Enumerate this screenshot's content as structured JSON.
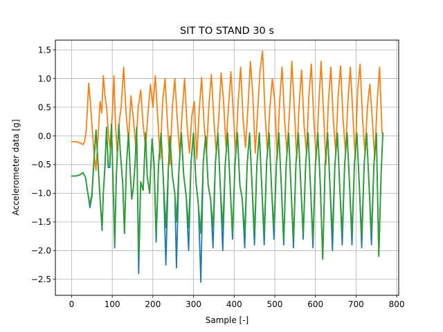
{
  "chart_data": {
    "type": "line",
    "title": "SIT TO STAND 30 s",
    "xlabel": "Sample [-]",
    "ylabel": "Accelerometer data [g]",
    "xlim": [
      -40,
      805
    ],
    "ylim": [
      -2.78,
      1.67
    ],
    "xticks": [
      0,
      100,
      200,
      300,
      400,
      500,
      600,
      700,
      800
    ],
    "yticks": [
      -2.5,
      -2.0,
      -1.5,
      -1.0,
      -0.5,
      0.0,
      0.5,
      1.0,
      1.5
    ],
    "xtick_labels": [
      "0",
      "100",
      "200",
      "300",
      "400",
      "500",
      "600",
      "700",
      "800"
    ],
    "ytick_labels": [
      "−2.5",
      "−2.0",
      "−1.5",
      "−1.0",
      "−0.5",
      "0.0",
      "0.5",
      "1.0",
      "1.5"
    ],
    "grid": true,
    "series": [
      {
        "color": "#1f77b4",
        "x": [
          0,
          10,
          20,
          28,
          34,
          40,
          45,
          50,
          55,
          60,
          66,
          70,
          75,
          78,
          82,
          86,
          90,
          94,
          98,
          102,
          106,
          110,
          116,
          120,
          126,
          130,
          135,
          140,
          144,
          148,
          152,
          156,
          160,
          165,
          170,
          176,
          182,
          186,
          192,
          198,
          203,
          208,
          214,
          220,
          226,
          232,
          238,
          242,
          248,
          254,
          258,
          264,
          270,
          276,
          282,
          288,
          294,
          300,
          306,
          312,
          318,
          324,
          330,
          336,
          342,
          348,
          354,
          360,
          366,
          372,
          378,
          384,
          390,
          396,
          402,
          408,
          414,
          420,
          426,
          432,
          438,
          444,
          450,
          456,
          462,
          468,
          474,
          480,
          486,
          492,
          498,
          504,
          510,
          516,
          522,
          528,
          534,
          540,
          546,
          552,
          558,
          564,
          570,
          576,
          582,
          588,
          594,
          600,
          606,
          612,
          618,
          624,
          630,
          636,
          642,
          648,
          654,
          660,
          666,
          672,
          678,
          684,
          690,
          696,
          702,
          708,
          714,
          720,
          726,
          732,
          738,
          744,
          750,
          756,
          762,
          766
        ],
        "y": [
          -0.7,
          -0.7,
          -0.68,
          -0.64,
          -0.72,
          -1.0,
          -1.25,
          -1.05,
          -0.45,
          0.1,
          -0.6,
          -1.1,
          -1.65,
          -1.0,
          -0.55,
          0.15,
          -0.55,
          -0.55,
          0.2,
          -0.8,
          -1.95,
          -0.7,
          0.2,
          -0.3,
          -0.85,
          -1.7,
          -0.5,
          0.05,
          -0.6,
          -1.1,
          -0.9,
          -0.5,
          0.15,
          -2.4,
          -0.8,
          -0.95,
          0.05,
          -0.7,
          -1.0,
          -0.05,
          -0.5,
          -1.85,
          -0.5,
          0.05,
          -0.8,
          -2.25,
          -0.6,
          0.0,
          -0.7,
          -1.0,
          -2.3,
          -0.6,
          0.05,
          -0.7,
          -1.05,
          -2.0,
          -0.45,
          0.05,
          -0.8,
          -1.2,
          -2.55,
          -0.45,
          0.0,
          -0.85,
          -1.1,
          -1.95,
          -0.45,
          0.05,
          -0.9,
          -2.0,
          -0.5,
          0.05,
          -0.85,
          -1.8,
          -0.5,
          0.05,
          -0.85,
          -1.1,
          -1.95,
          -0.5,
          0.05,
          -0.85,
          -1.9,
          -0.5,
          0.05,
          -0.9,
          -1.9,
          -0.45,
          0.05,
          -0.9,
          -1.8,
          -0.5,
          0.05,
          -0.85,
          -1.9,
          -0.5,
          0.05,
          -0.9,
          -1.95,
          -0.5,
          0.05,
          -0.85,
          -1.8,
          -0.5,
          0.05,
          -0.9,
          -1.95,
          -0.5,
          0.05,
          -0.85,
          -2.15,
          -0.5,
          0.05,
          -0.9,
          -2.0,
          -0.5,
          0.05,
          -0.9,
          -1.9,
          -0.5,
          0.05,
          -0.85,
          -1.9,
          -0.5,
          0.05,
          -0.85,
          -1.95,
          -0.5,
          0.05,
          -0.85,
          -1.9,
          -0.5,
          0.05,
          -2.1,
          -0.6,
          0.05
        ]
      },
      {
        "color": "#ff7f0e",
        "x": [
          0,
          10,
          20,
          28,
          32,
          36,
          42,
          46,
          50,
          55,
          60,
          66,
          70,
          74,
          78,
          82,
          86,
          90,
          94,
          100,
          104,
          108,
          112,
          118,
          122,
          128,
          134,
          140,
          146,
          152,
          158,
          164,
          170,
          176,
          182,
          188,
          194,
          200,
          206,
          212,
          218,
          224,
          230,
          236,
          242,
          248,
          254,
          260,
          266,
          272,
          278,
          284,
          290,
          296,
          302,
          308,
          314,
          320,
          326,
          332,
          338,
          344,
          350,
          356,
          362,
          368,
          374,
          380,
          386,
          392,
          398,
          404,
          410,
          416,
          422,
          428,
          434,
          440,
          446,
          452,
          458,
          464,
          470,
          476,
          482,
          488,
          494,
          500,
          506,
          512,
          518,
          524,
          530,
          536,
          542,
          548,
          554,
          560,
          566,
          572,
          578,
          584,
          590,
          596,
          602,
          608,
          614,
          620,
          626,
          632,
          638,
          644,
          650,
          656,
          662,
          668,
          674,
          680,
          686,
          692,
          698,
          704,
          710,
          716,
          722,
          728,
          734,
          740,
          746,
          752,
          758,
          764
        ],
        "y": [
          -0.1,
          -0.1,
          -0.12,
          -0.15,
          -0.1,
          0.1,
          0.92,
          0.6,
          0.2,
          -0.3,
          -0.6,
          0.1,
          0.6,
          0.4,
          1.05,
          0.7,
          0.5,
          0.1,
          -0.2,
          0.35,
          1.05,
          0.2,
          -0.3,
          0.3,
          0.5,
          1.2,
          0.4,
          -0.1,
          0.7,
          0.3,
          -0.2,
          0.5,
          0.8,
          0.2,
          -0.2,
          0.4,
          0.9,
          0.5,
          1.05,
          0.3,
          -0.4,
          0.6,
          1.0,
          0.2,
          -0.5,
          0.5,
          1.0,
          0.3,
          -0.3,
          0.4,
          1.0,
          0.2,
          -0.3,
          0.35,
          0.6,
          -0.4,
          0.45,
          1.02,
          0.2,
          -0.3,
          0.55,
          1.07,
          0.3,
          -0.3,
          0.3,
          1.1,
          0.6,
          -0.2,
          0.5,
          1.12,
          0.4,
          -0.3,
          0.6,
          1.2,
          0.3,
          -0.2,
          0.5,
          1.3,
          0.7,
          -0.3,
          0.45,
          1.15,
          1.48,
          0.4,
          -0.3,
          0.5,
          1.0,
          0.6,
          -0.4,
          0.6,
          1.2,
          0.3,
          -0.3,
          0.4,
          1.3,
          0.5,
          -0.4,
          0.55,
          1.15,
          0.2,
          -0.3,
          0.7,
          1.25,
          0.3,
          -0.4,
          0.5,
          1.3,
          0.4,
          -0.5,
          0.6,
          1.2,
          0.3,
          -0.3,
          0.7,
          1.22,
          0.3,
          -0.3,
          0.6,
          1.2,
          0.4,
          -0.4,
          0.8,
          1.25,
          0.3,
          -0.3,
          0.5,
          0.9,
          0.3,
          -0.4,
          0.6,
          1.2,
          0.05
        ]
      },
      {
        "color": "#2ca02c",
        "x": [
          0,
          10,
          20,
          28,
          34,
          40,
          45,
          50,
          55,
          60,
          66,
          70,
          75,
          78,
          82,
          86,
          90,
          94,
          98,
          102,
          106,
          110,
          116,
          120,
          126,
          130,
          135,
          140,
          144,
          148,
          152,
          156,
          160,
          165,
          170,
          176,
          182,
          186,
          192,
          198,
          203,
          208,
          214,
          220,
          226,
          232,
          238,
          242,
          248,
          254,
          258,
          264,
          270,
          276,
          282,
          288,
          294,
          300,
          306,
          312,
          318,
          324,
          330,
          336,
          342,
          348,
          354,
          360,
          366,
          372,
          378,
          384,
          390,
          396,
          402,
          408,
          414,
          420,
          426,
          432,
          438,
          444,
          450,
          456,
          462,
          468,
          474,
          480,
          486,
          492,
          498,
          504,
          510,
          516,
          522,
          528,
          534,
          540,
          546,
          552,
          558,
          564,
          570,
          576,
          582,
          588,
          594,
          600,
          606,
          612,
          618,
          624,
          630,
          636,
          642,
          648,
          654,
          660,
          666,
          672,
          678,
          684,
          690,
          696,
          702,
          708,
          714,
          720,
          726,
          732,
          738,
          744,
          750,
          756,
          762,
          766
        ],
        "y": [
          -0.7,
          -0.7,
          -0.68,
          -0.64,
          -0.72,
          -1.0,
          -1.2,
          -1.0,
          -0.4,
          0.1,
          -0.6,
          -1.1,
          -1.6,
          -1.0,
          -0.5,
          0.15,
          -0.5,
          -0.5,
          0.2,
          -0.8,
          -1.9,
          -0.7,
          0.2,
          -0.3,
          -0.85,
          -1.7,
          -0.5,
          0.05,
          -0.6,
          -1.1,
          -0.9,
          -0.5,
          0.15,
          -2.1,
          -0.8,
          -0.95,
          0.05,
          -0.7,
          -1.0,
          -0.05,
          -0.5,
          -1.7,
          -0.5,
          0.05,
          -0.8,
          -1.6,
          -0.6,
          0.0,
          -0.7,
          -1.0,
          -1.5,
          -0.6,
          0.05,
          -0.7,
          -1.05,
          -1.6,
          -0.45,
          0.05,
          -0.8,
          -1.2,
          -1.7,
          -0.45,
          0.0,
          -0.85,
          -1.1,
          -1.6,
          -0.45,
          0.05,
          -0.9,
          -1.6,
          -0.5,
          0.05,
          -0.85,
          -1.7,
          -0.5,
          0.05,
          -0.85,
          -1.1,
          -1.7,
          -0.5,
          0.05,
          -0.85,
          -1.7,
          -0.5,
          0.05,
          -0.9,
          -1.7,
          -0.45,
          0.05,
          -0.9,
          -1.6,
          -0.5,
          0.05,
          -0.85,
          -1.8,
          -0.5,
          0.05,
          -0.9,
          -1.8,
          -0.5,
          0.05,
          -0.85,
          -1.7,
          -0.5,
          0.05,
          -0.9,
          -1.8,
          -0.5,
          0.05,
          -0.85,
          -2.15,
          -0.5,
          0.05,
          -0.9,
          -1.7,
          -0.5,
          0.05,
          -0.9,
          -1.7,
          -0.5,
          0.05,
          -0.85,
          -1.7,
          -0.5,
          0.05,
          -0.85,
          -1.75,
          -0.5,
          0.05,
          -0.85,
          -1.7,
          -0.5,
          0.05,
          -2.1,
          -0.6,
          0.05
        ]
      }
    ]
  }
}
